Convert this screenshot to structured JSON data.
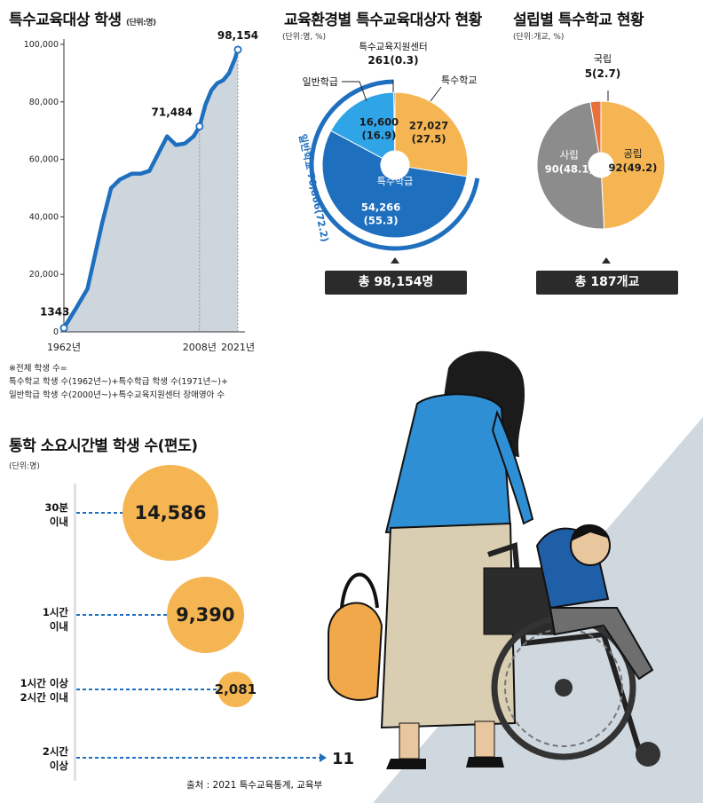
{
  "chart_data": [
    {
      "type": "area",
      "title": "특수교육대상 학생",
      "unit": "(단위:명)",
      "x": [
        1962,
        1966,
        1970,
        1975,
        1978,
        1981,
        1985,
        1988,
        1991,
        1994,
        1997,
        2000,
        2003,
        2006,
        2008,
        2010,
        2012,
        2014,
        2016,
        2018,
        2020,
        2021
      ],
      "y": [
        1343,
        8000,
        15000,
        38000,
        50000,
        53000,
        55000,
        55000,
        56000,
        62000,
        68000,
        65000,
        65500,
        68000,
        71484,
        79000,
        84000,
        86500,
        87500,
        90000,
        95000,
        98154
      ],
      "ylim": [
        0,
        100000
      ],
      "yticks": [
        "0",
        "20,000",
        "40,000",
        "60,000",
        "80,000",
        "100,000"
      ],
      "xticks": [
        "1962년",
        "2008년",
        "2021년"
      ],
      "callouts": [
        "1343",
        "71,484",
        "98,154"
      ],
      "grid": false,
      "notes": [
        "※전체 학생 수=",
        "특수학교 학생 수(1962년~)+특수학급 학생 수(1971년~)+",
        "일반학급 학생 수(2000년~)+특수교육지원센터 장애영아 수"
      ]
    },
    {
      "type": "pie",
      "title": "교육환경별 특수교육대상자 현황",
      "unit": "(단위:명, %)",
      "slices": [
        {
          "label": "특수학교",
          "value": 27027,
          "value_text": "27,027",
          "pct_text": "(27.5)",
          "color": "#f5b552"
        },
        {
          "label": "특수학급",
          "value": 54266,
          "value_text": "54,266",
          "pct_text": "(55.3)",
          "color": "#1f6fbf"
        },
        {
          "label": "일반학급",
          "value": 16600,
          "value_text": "16,600",
          "pct_text": "(16.9)",
          "color": "#2fa4e7"
        },
        {
          "label": "특수교육지원센터",
          "value": 261,
          "value_text": "261(0.3)",
          "pct_text": "",
          "color": "#111111"
        }
      ],
      "bracket_label": "일반학교 70,866(72.2)",
      "total": "총 98,154명"
    },
    {
      "type": "pie",
      "title": "설립별 특수학교 현황",
      "unit": "(단위:개교, %)",
      "slices": [
        {
          "label": "공립",
          "value": 92,
          "value_text": "92(49.2)",
          "color": "#f5b552"
        },
        {
          "label": "사립",
          "value": 90,
          "value_text": "90(48.1)",
          "color": "#8c8c8c"
        },
        {
          "label": "국립",
          "value": 5,
          "value_text": "5(2.7)",
          "color": "#e8703a"
        }
      ],
      "total": "총 187개교"
    },
    {
      "type": "bubble",
      "title": "통학 소요시간별 학생 수(편도)",
      "unit": "(단위:명)",
      "categories": [
        [
          "30분",
          "이내"
        ],
        [
          "1시간",
          "이내"
        ],
        [
          "1시간 이상",
          "2시간 이내"
        ],
        [
          "2시간",
          "이상"
        ]
      ],
      "values": [
        14586,
        9390,
        2081,
        11
      ],
      "value_text": [
        "14,586",
        "9,390",
        "2,081",
        "11"
      ],
      "source": "출처 : 2021 특수교육통계, 교육부"
    }
  ],
  "colors": {
    "accent_blue": "#1f6fbf",
    "light_blue": "#2fa4e7",
    "orange": "#f5b552",
    "gray": "#8c8c8c",
    "dark": "#2b2b2b",
    "area": "#cdd5dd"
  },
  "illustration": "woman-pushing-wheelchair-icon"
}
